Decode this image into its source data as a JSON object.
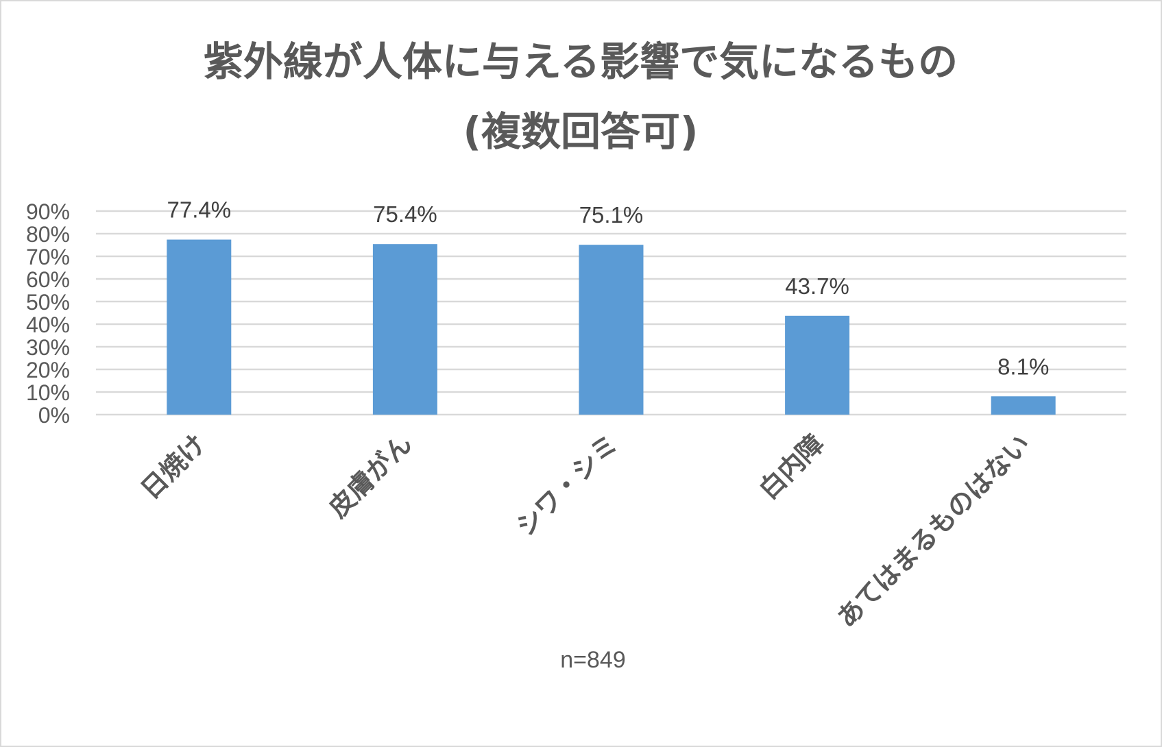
{
  "chart_data": {
    "type": "bar",
    "title": "紫外線が人体に与える影響で気になるもの",
    "subtitle": "(複数回答可)",
    "categories": [
      "日焼け",
      "皮膚がん",
      "シワ・シミ",
      "白内障",
      "あてはまるものはない"
    ],
    "values": [
      77.4,
      75.4,
      75.1,
      43.7,
      8.1
    ],
    "data_labels": [
      "77.4%",
      "75.4%",
      "75.1%",
      "43.7%",
      "8.1%"
    ],
    "yticks": [
      "0%",
      "10%",
      "20%",
      "30%",
      "40%",
      "50%",
      "60%",
      "70%",
      "80%",
      "90%"
    ],
    "ylim": [
      0,
      90
    ],
    "grid": true,
    "bar_color": "#5b9bd5",
    "note": "n=849"
  }
}
